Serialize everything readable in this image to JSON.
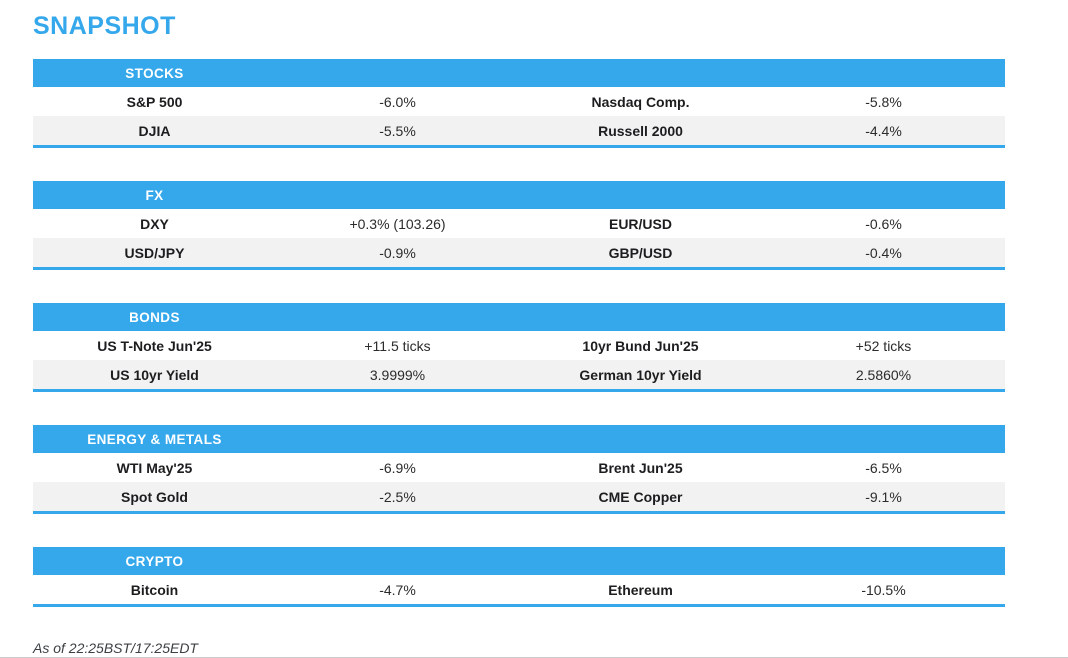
{
  "page_title": "SNAPSHOT",
  "colors": {
    "accent_blue": "#35a8ec",
    "row_alt_gray": "#f2f2f2",
    "title_blue": "#35a8ec"
  },
  "sections": [
    {
      "title": "STOCKS",
      "rows": [
        {
          "label1": "S&P 500",
          "value1": "-6.0%",
          "label2": "Nasdaq Comp.",
          "value2": "-5.8%"
        },
        {
          "label1": "DJIA",
          "value1": "-5.5%",
          "label2": "Russell 2000",
          "value2": "-4.4%"
        }
      ]
    },
    {
      "title": "FX",
      "rows": [
        {
          "label1": "DXY",
          "value1": "+0.3% (103.26)",
          "label2": "EUR/USD",
          "value2": "-0.6%"
        },
        {
          "label1": "USD/JPY",
          "value1": "-0.9%",
          "label2": "GBP/USD",
          "value2": "-0.4%"
        }
      ]
    },
    {
      "title": "BONDS",
      "rows": [
        {
          "label1": "US T-Note Jun'25",
          "value1": "+11.5 ticks",
          "label2": "10yr Bund Jun'25",
          "value2": "+52 ticks"
        },
        {
          "label1": "US 10yr Yield",
          "value1": "3.9999%",
          "label2": "German 10yr Yield",
          "value2": "2.5860%"
        }
      ]
    },
    {
      "title": "ENERGY & METALS",
      "rows": [
        {
          "label1": "WTI May'25",
          "value1": "-6.9%",
          "label2": "Brent Jun'25",
          "value2": "-6.5%"
        },
        {
          "label1": "Spot Gold",
          "value1": "-2.5%",
          "label2": "CME Copper",
          "value2": "-9.1%"
        }
      ]
    },
    {
      "title": "CRYPTO",
      "rows": [
        {
          "label1": "Bitcoin",
          "value1": "-4.7%",
          "label2": "Ethereum",
          "value2": "-10.5%"
        }
      ]
    }
  ],
  "footer": {
    "as_of": "As of 22:25BST/17:25EDT"
  }
}
